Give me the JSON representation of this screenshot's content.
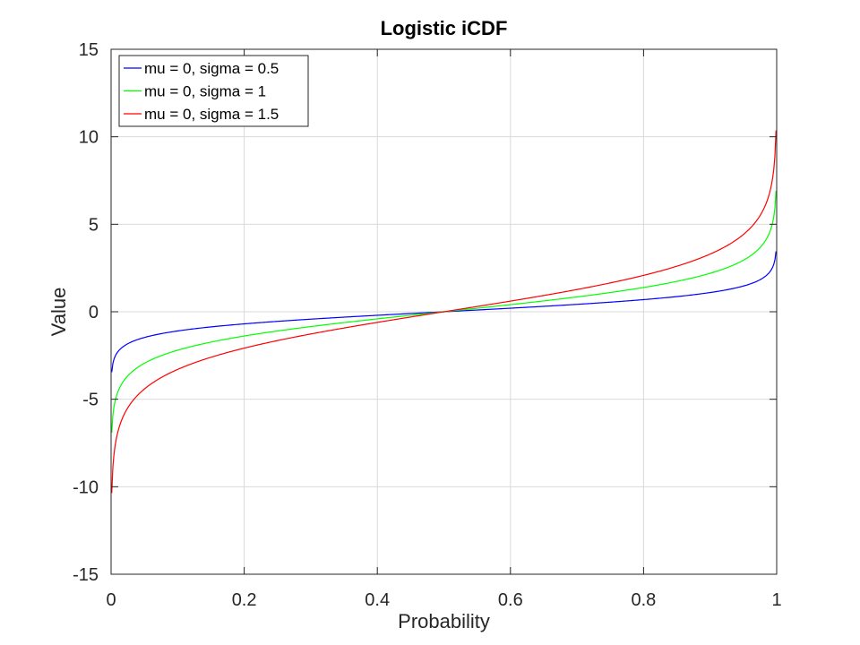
{
  "chart_data": {
    "type": "line",
    "title": "Logistic iCDF",
    "xlabel": "Probability",
    "ylabel": "Value",
    "xlim": [
      0,
      1
    ],
    "ylim": [
      -15,
      15
    ],
    "xticks": [
      0,
      0.2,
      0.4,
      0.6,
      0.8,
      1
    ],
    "xtick_labels": [
      "0",
      "0.2",
      "0.4",
      "0.6",
      "0.8",
      "1"
    ],
    "yticks": [
      -15,
      -10,
      -5,
      0,
      5,
      10,
      15
    ],
    "ytick_labels": [
      "-15",
      "-10",
      "-5",
      "0",
      "5",
      "10",
      "15"
    ],
    "grid": true,
    "legend_position": "top-left",
    "x": [
      0.001,
      0.005,
      0.01,
      0.02,
      0.03,
      0.05,
      0.075,
      0.1,
      0.15,
      0.2,
      0.25,
      0.3,
      0.35,
      0.4,
      0.45,
      0.5,
      0.55,
      0.6,
      0.65,
      0.7,
      0.75,
      0.8,
      0.85,
      0.9,
      0.925,
      0.95,
      0.97,
      0.98,
      0.99,
      0.995,
      0.999
    ],
    "series": [
      {
        "name": "mu = 0, sigma = 0.5",
        "color": "#0000ff",
        "values": [
          -3.45,
          -2.65,
          -2.3,
          -1.95,
          -1.74,
          -1.47,
          -1.26,
          -1.1,
          -0.87,
          -0.69,
          -0.55,
          -0.42,
          -0.31,
          -0.2,
          -0.1,
          0,
          0.1,
          0.2,
          0.31,
          0.42,
          0.55,
          0.69,
          0.87,
          1.1,
          1.26,
          1.47,
          1.74,
          1.95,
          2.3,
          2.65,
          3.45
        ]
      },
      {
        "name": "mu = 0, sigma = 1",
        "color": "#00ff00",
        "values": [
          -6.91,
          -5.29,
          -4.6,
          -3.89,
          -3.48,
          -2.94,
          -2.51,
          -2.2,
          -1.73,
          -1.39,
          -1.1,
          -0.85,
          -0.62,
          -0.41,
          -0.2,
          0,
          0.2,
          0.41,
          0.62,
          0.85,
          1.1,
          1.39,
          1.73,
          2.2,
          2.51,
          2.94,
          3.48,
          3.89,
          4.6,
          5.29,
          6.91
        ]
      },
      {
        "name": "mu = 0, sigma = 1.5",
        "color": "#ff0000",
        "values": [
          -10.36,
          -7.94,
          -6.89,
          -5.84,
          -5.22,
          -4.42,
          -3.77,
          -3.3,
          -2.6,
          -2.08,
          -1.65,
          -1.27,
          -0.93,
          -0.61,
          -0.3,
          0,
          0.3,
          0.61,
          0.93,
          1.27,
          1.65,
          2.08,
          2.6,
          3.3,
          3.77,
          4.42,
          5.22,
          5.84,
          6.89,
          7.94,
          10.36
        ]
      }
    ]
  }
}
